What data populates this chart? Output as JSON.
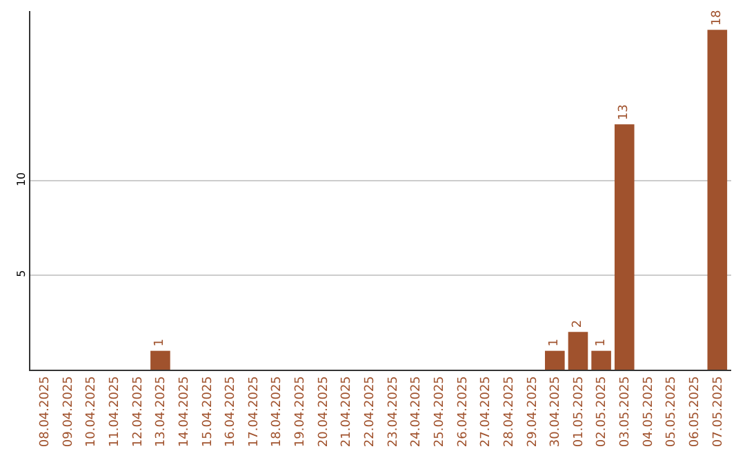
{
  "chart_data": {
    "type": "bar",
    "categories": [
      "08.04.2025",
      "09.04.2025",
      "10.04.2025",
      "11.04.2025",
      "12.04.2025",
      "13.04.2025",
      "14.04.2025",
      "15.04.2025",
      "16.04.2025",
      "17.04.2025",
      "18.04.2025",
      "19.04.2025",
      "20.04.2025",
      "21.04.2025",
      "22.04.2025",
      "23.04.2025",
      "24.04.2025",
      "25.04.2025",
      "26.04.2025",
      "27.04.2025",
      "28.04.2025",
      "29.04.2025",
      "30.04.2025",
      "01.05.2025",
      "02.05.2025",
      "03.05.2025",
      "04.05.2025",
      "05.05.2025",
      "06.05.2025",
      "07.05.2025"
    ],
    "series": [
      {
        "color": "#a0522d",
        "values": [
          0,
          0,
          0,
          0,
          0,
          1,
          0,
          0,
          0,
          0,
          0,
          0,
          0,
          0,
          0,
          0,
          0,
          0,
          0,
          0,
          0,
          0,
          1,
          2,
          1,
          13,
          0,
          0,
          0,
          18
        ],
        "value_labels": [
          null,
          null,
          null,
          null,
          null,
          "1",
          null,
          null,
          null,
          null,
          null,
          null,
          null,
          null,
          null,
          null,
          null,
          null,
          null,
          null,
          null,
          null,
          "1",
          "2",
          "1",
          "13",
          null,
          null,
          null,
          "18"
        ]
      }
    ],
    "ylim": [
      0,
      19
    ],
    "yticks": [
      5,
      10
    ],
    "grid": "y"
  }
}
